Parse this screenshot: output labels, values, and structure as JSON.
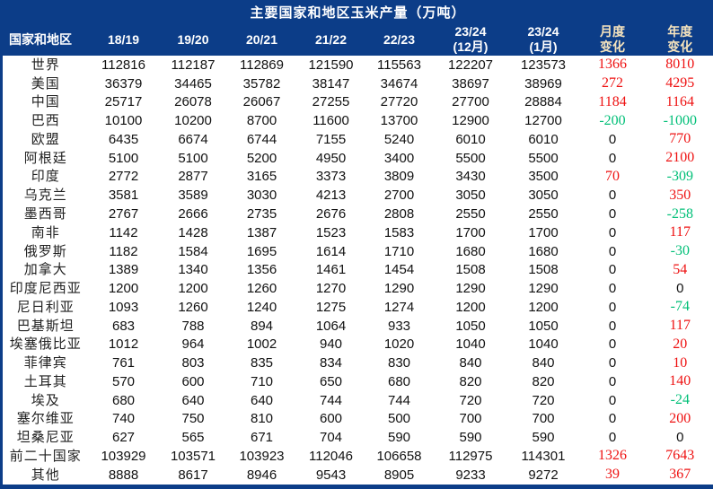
{
  "chart_data": {
    "type": "table",
    "title": "主要国家和地区玉米产量（万吨）",
    "columns": [
      {
        "label": "国家和地区",
        "accent": false
      },
      {
        "label": "18/19",
        "accent": false
      },
      {
        "label": "19/20",
        "accent": false
      },
      {
        "label": "20/21",
        "accent": false
      },
      {
        "label": "21/22",
        "accent": false
      },
      {
        "label": "22/23",
        "accent": false
      },
      {
        "label": "23/24\n(12月)",
        "accent": false
      },
      {
        "label": "23/24\n(1月)",
        "accent": false
      },
      {
        "label": "月度\n变化",
        "accent": true
      },
      {
        "label": "年度\n变化",
        "accent": true
      }
    ],
    "change_column_indices": [
      7,
      8
    ],
    "rows": [
      {
        "name": "世界",
        "values": [
          112816,
          112187,
          112869,
          121590,
          115563,
          122207,
          123573,
          1366,
          8010
        ]
      },
      {
        "name": "美国",
        "values": [
          36379,
          34465,
          35782,
          38147,
          34674,
          38697,
          38969,
          272,
          4295
        ]
      },
      {
        "name": "中国",
        "values": [
          25717,
          26078,
          26067,
          27255,
          27720,
          27700,
          28884,
          1184,
          1164
        ]
      },
      {
        "name": "巴西",
        "values": [
          10100,
          10200,
          8700,
          11600,
          13700,
          12900,
          12700,
          -200,
          -1000
        ]
      },
      {
        "name": "欧盟",
        "values": [
          6435,
          6674,
          6744,
          7155,
          5240,
          6010,
          6010,
          0,
          770
        ]
      },
      {
        "name": "阿根廷",
        "values": [
          5100,
          5100,
          5200,
          4950,
          3400,
          5500,
          5500,
          0,
          2100
        ]
      },
      {
        "name": "印度",
        "values": [
          2772,
          2877,
          3165,
          3373,
          3809,
          3430,
          3500,
          70,
          -309
        ]
      },
      {
        "name": "乌克兰",
        "values": [
          3581,
          3589,
          3030,
          4213,
          2700,
          3050,
          3050,
          0,
          350
        ]
      },
      {
        "name": "墨西哥",
        "values": [
          2767,
          2666,
          2735,
          2676,
          2808,
          2550,
          2550,
          0,
          -258
        ]
      },
      {
        "name": "南非",
        "values": [
          1142,
          1428,
          1387,
          1523,
          1583,
          1700,
          1700,
          0,
          117
        ]
      },
      {
        "name": "俄罗斯",
        "values": [
          1182,
          1584,
          1695,
          1614,
          1710,
          1680,
          1680,
          0,
          -30
        ]
      },
      {
        "name": "加拿大",
        "values": [
          1389,
          1340,
          1356,
          1461,
          1454,
          1508,
          1508,
          0,
          54
        ]
      },
      {
        "name": "印度尼西亚",
        "values": [
          1200,
          1200,
          1260,
          1270,
          1290,
          1290,
          1290,
          0,
          0
        ]
      },
      {
        "name": "尼日利亚",
        "values": [
          1093,
          1260,
          1240,
          1275,
          1274,
          1200,
          1200,
          0,
          -74
        ]
      },
      {
        "name": "巴基斯坦",
        "values": [
          683,
          788,
          894,
          1064,
          933,
          1050,
          1050,
          0,
          117
        ]
      },
      {
        "name": "埃塞俄比亚",
        "values": [
          1012,
          964,
          1002,
          940,
          1020,
          1040,
          1040,
          0,
          20
        ]
      },
      {
        "name": "菲律宾",
        "values": [
          761,
          803,
          835,
          834,
          830,
          840,
          840,
          0,
          10
        ]
      },
      {
        "name": "土耳其",
        "values": [
          570,
          600,
          710,
          650,
          680,
          820,
          820,
          0,
          140
        ]
      },
      {
        "name": "埃及",
        "values": [
          680,
          640,
          640,
          744,
          744,
          720,
          720,
          0,
          -24
        ]
      },
      {
        "name": "塞尔维亚",
        "values": [
          740,
          750,
          810,
          600,
          500,
          700,
          700,
          0,
          200
        ]
      },
      {
        "name": "坦桑尼亚",
        "values": [
          627,
          565,
          671,
          704,
          590,
          590,
          590,
          0,
          0
        ]
      },
      {
        "name": "前二十国家",
        "values": [
          103929,
          103571,
          103923,
          112046,
          106658,
          112975,
          114301,
          1326,
          7643
        ]
      },
      {
        "name": "其他",
        "values": [
          8888,
          8617,
          8946,
          9543,
          8905,
          9233,
          9272,
          39,
          367
        ]
      }
    ]
  },
  "colors": {
    "header_bg": "#0c3d88",
    "header_text": "#ffffff",
    "accent_header_text": "#f5e3bd",
    "positive_change": "#ee1111",
    "negative_change": "#00bf77",
    "zero_change": "#111111",
    "body_bg": "#ffffff",
    "body_text": "#111111"
  }
}
